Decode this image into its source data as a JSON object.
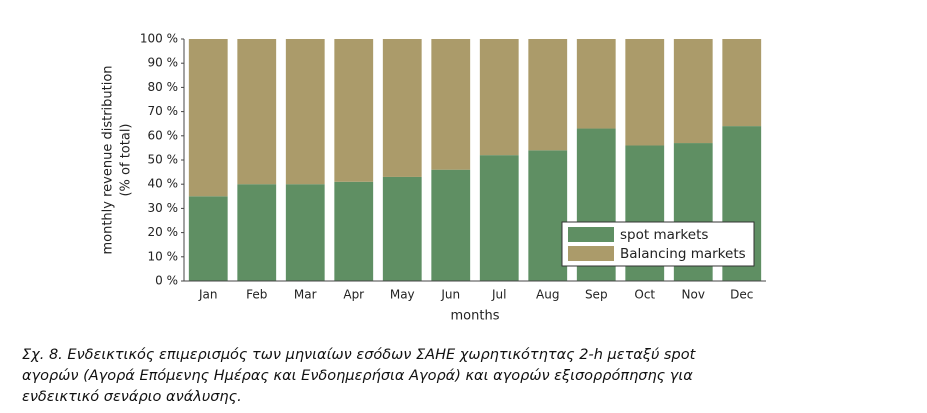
{
  "chart_data": {
    "type": "stacked_bar",
    "ylabel": [
      "monthly revenue distribution",
      "(% of total)"
    ],
    "xlabel": "months",
    "categories": [
      "Jan",
      "Feb",
      "Mar",
      "Apr",
      "May",
      "Jun",
      "Jul",
      "Aug",
      "Sep",
      "Oct",
      "Nov",
      "Dec"
    ],
    "series": [
      {
        "name": "spot markets",
        "color": "#5f8f63",
        "values": [
          35,
          40,
          40,
          41,
          43,
          46,
          52,
          54,
          63,
          56,
          57,
          64
        ]
      },
      {
        "name": "Balancing markets",
        "color": "#ab9b6a",
        "values": [
          65,
          60,
          60,
          59,
          57,
          54,
          48,
          46,
          37,
          44,
          43,
          36
        ]
      }
    ],
    "ylim": [
      0,
      100
    ],
    "yticks": [
      {
        "value": 0,
        "label": "0 %"
      },
      {
        "value": 10,
        "label": "10 %"
      },
      {
        "value": 20,
        "label": "20 %"
      },
      {
        "value": 30,
        "label": "30 %"
      },
      {
        "value": 40,
        "label": "40 %"
      },
      {
        "value": 50,
        "label": "50 %"
      },
      {
        "value": 60,
        "label": "60 %"
      },
      {
        "value": 70,
        "label": "70 %"
      },
      {
        "value": 80,
        "label": "80 %"
      },
      {
        "value": 90,
        "label": "90 %"
      },
      {
        "value": 100,
        "label": "100 %"
      }
    ],
    "legend": "lower right"
  },
  "caption": "Σχ. 8. Ενδεικτικός επιμερισμός των μηνιαίων εσόδων ΣΑΗΕ χωρητικότητας 2-h μεταξύ spot αγορών (Αγορά Επόμενης Ημέρας και Ενδοημερήσια Αγορά) και αγορών εξισορρόπησης για ενδεικτικό σενάριο ανάλυσης."
}
